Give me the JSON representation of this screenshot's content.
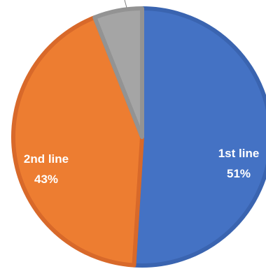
{
  "chart_data": {
    "type": "pie",
    "title": "",
    "legend": "none",
    "start_angle_deg": 0,
    "direction": "clockwise",
    "slices": [
      {
        "label": "1st line",
        "value": 51,
        "value_text": "51%",
        "color": "#4472C4",
        "border": "#3A64B0"
      },
      {
        "label": "2nd line",
        "value": 43,
        "value_text": "43%",
        "color": "#ED7D31",
        "border": "#D8692A"
      },
      {
        "label": "",
        "value": 6,
        "value_text": "",
        "color": "#A5A5A5",
        "border": "#939393"
      }
    ]
  }
}
